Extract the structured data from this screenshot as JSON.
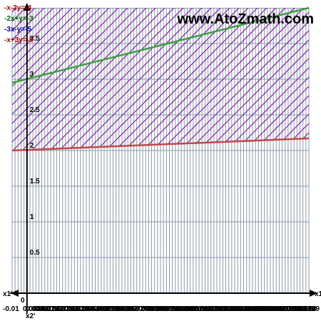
{
  "watermark": "www.AtoZmath.com",
  "axes": {
    "x_pos_label": "x1",
    "x_neg_label": "x1'",
    "x_sub_label": "x2'",
    "y_origin_label": "0",
    "x_neg_tick": "-0.01",
    "x_last_tick": "19"
  },
  "colors": {
    "grid": "#8a9aa8",
    "hatch_purple": "#7a00b0",
    "line_green": "#3ca03c",
    "line_red": "#c04848"
  },
  "chart_data": {
    "type": "line",
    "title": "",
    "xlabel": "x1",
    "ylabel": "",
    "xlim": [
      -0.01,
      0.19
    ],
    "ylim": [
      0,
      4
    ],
    "y_ticks": [
      0.5,
      1,
      1.5,
      2,
      2.5,
      3,
      3.5
    ],
    "grid": true,
    "legend_position": "top-left",
    "series": [
      {
        "name": "-x-2y=-4",
        "color": "#b00000",
        "equation": {
          "a": -1,
          "b": -2,
          "c": -4
        }
      },
      {
        "name": "-2x+y=-3",
        "color": "#006400",
        "equation": {
          "a": -2,
          "b": 1,
          "c": -3
        }
      },
      {
        "name": "-3x-y=-5",
        "color": "#0000c0",
        "equation": {
          "a": -3,
          "b": -1,
          "c": -5
        }
      },
      {
        "name": "-x+3y=-9",
        "color": "#b00000",
        "equation": {
          "a": -1,
          "b": 3,
          "c": -9
        }
      }
    ],
    "plotted_lines": [
      {
        "ref": "green-line",
        "x": [
          -0.01,
          0.19
        ],
        "y": [
          2.95,
          4.0
        ],
        "color": "#3ca03c"
      },
      {
        "ref": "red-line",
        "x": [
          -0.01,
          0.19
        ],
        "y": [
          2.0,
          2.17
        ],
        "color": "#c04848"
      }
    ],
    "feasible_region": "hatched band between red line and top of plot"
  }
}
